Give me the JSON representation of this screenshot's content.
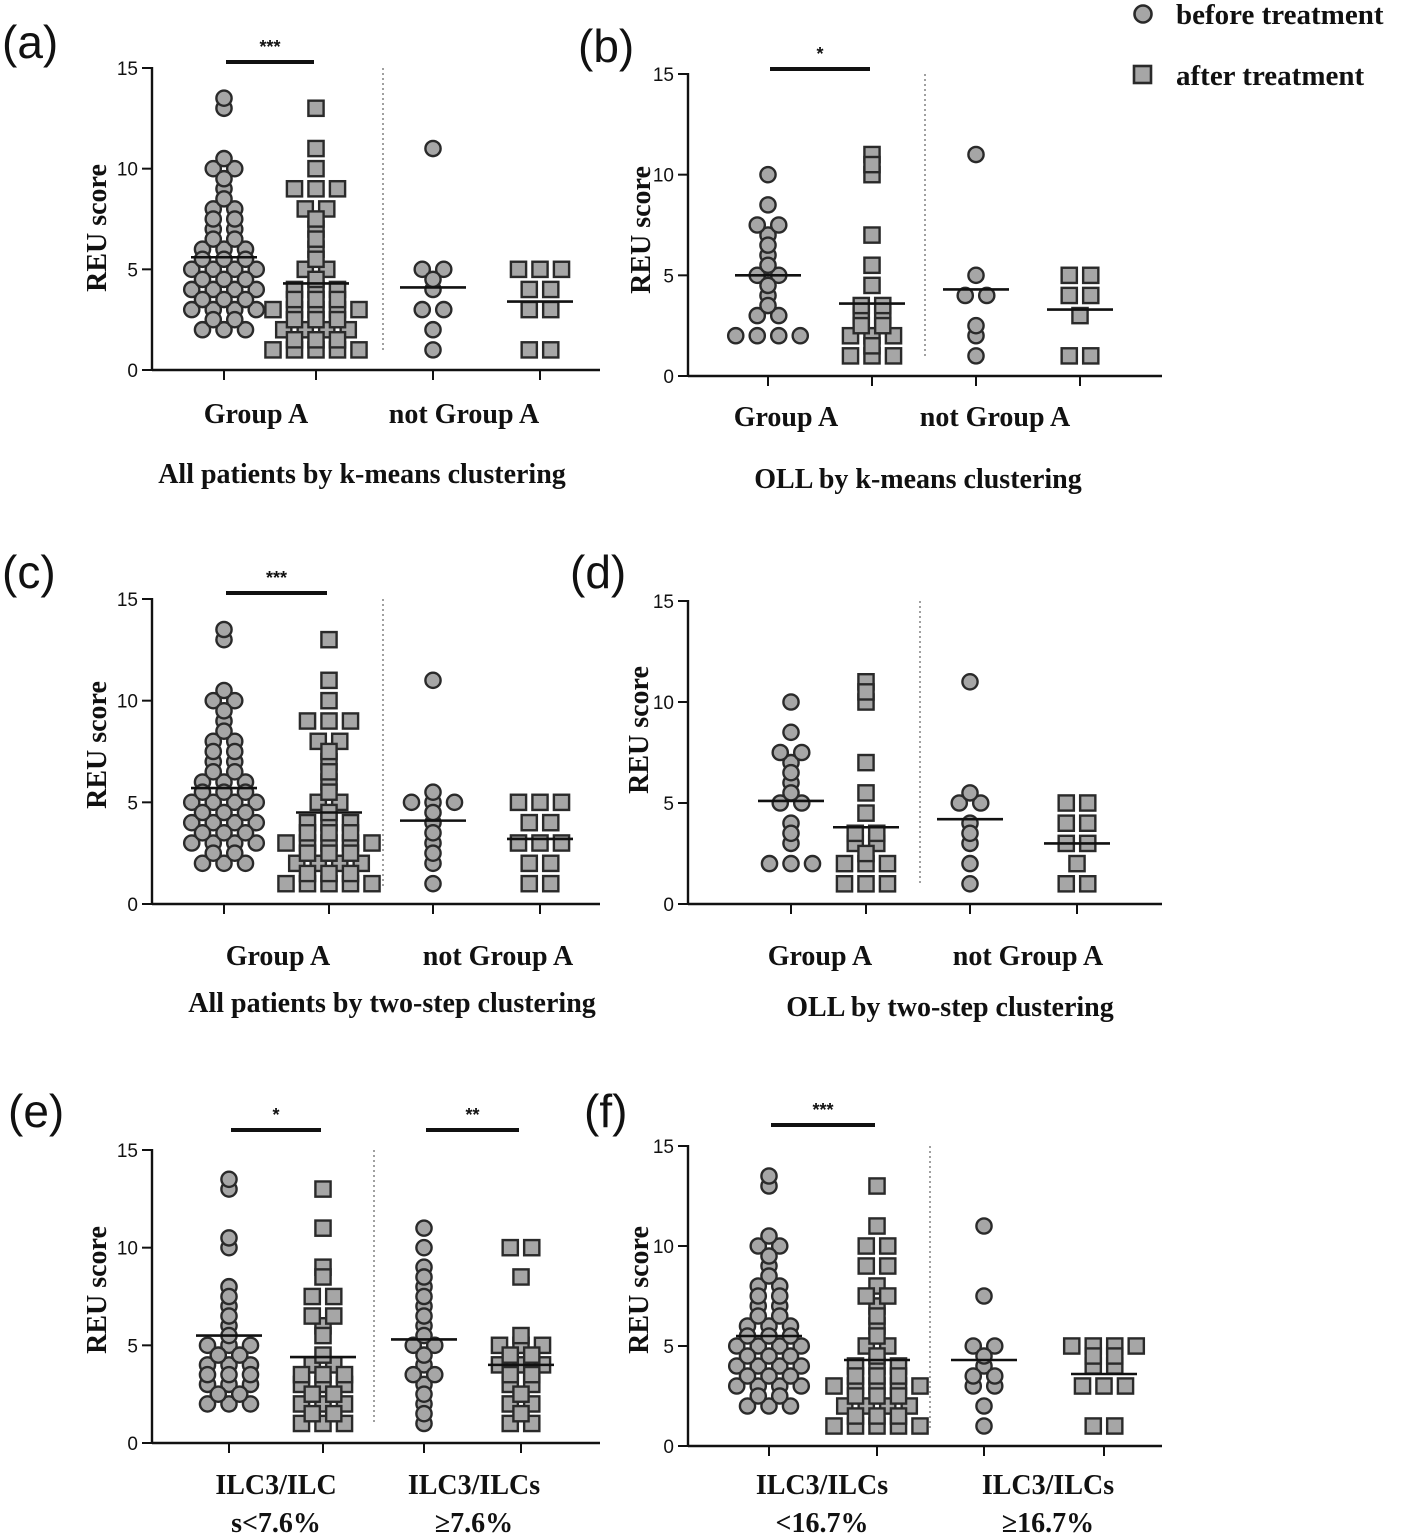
{
  "legend": {
    "before_label": "before treatment",
    "after_label": "after treatment",
    "marker_fill": "#a6a6a6",
    "marker_stroke": "#2a2a2a"
  },
  "chart_data": [
    {
      "type": "scatter",
      "panel_label": "(a)",
      "subtitle": "All patients by k-means clustering",
      "ylabel": "REU score",
      "ylim": [
        0,
        15
      ],
      "yticks": [
        0,
        5,
        10,
        15
      ],
      "group_labels": [
        [
          "Group A"
        ],
        [
          "not Group A"
        ]
      ],
      "series": [
        {
          "name": "before treatment",
          "group": 0,
          "mean": 5.6,
          "values": [
            13.5,
            13,
            10.5,
            10,
            10,
            9.5,
            9,
            8.5,
            8,
            8,
            7.5,
            7.5,
            7,
            7,
            6.5,
            6.5,
            6,
            6,
            6,
            5.5,
            5.5,
            5.5,
            5,
            5,
            5,
            5,
            4.5,
            4.5,
            4.5,
            4,
            4,
            4,
            4,
            3.5,
            3.5,
            3.5,
            3,
            3,
            3,
            3,
            2.5,
            2.5,
            2,
            2,
            2
          ]
        },
        {
          "name": "after treatment",
          "group": 0,
          "mean": 4.3,
          "values": [
            13,
            11,
            10,
            9,
            9,
            9,
            8,
            8,
            7.5,
            7,
            6.5,
            6,
            5.5,
            5,
            5,
            4.5,
            4,
            4,
            4,
            3.5,
            3.5,
            3.5,
            3,
            3,
            3,
            3,
            3,
            2.5,
            2.5,
            2.5,
            2,
            2,
            2,
            2,
            1.5,
            1.5,
            1.5,
            1,
            1,
            1,
            1,
            1
          ]
        },
        {
          "name": "before treatment",
          "group": 1,
          "mean": 4.1,
          "values": [
            11,
            5,
            5,
            4.5,
            4,
            3,
            3,
            2,
            1
          ]
        },
        {
          "name": "after treatment",
          "group": 1,
          "mean": 3.4,
          "values": [
            5,
            5,
            5,
            4,
            4,
            3,
            3,
            1,
            1
          ]
        }
      ],
      "significance": [
        {
          "group": 0,
          "label": "***"
        }
      ]
    },
    {
      "type": "scatter",
      "panel_label": "(b)",
      "subtitle": "OLL by k-means clustering",
      "ylabel": "REU score",
      "ylim": [
        0,
        15
      ],
      "yticks": [
        0,
        5,
        10,
        15
      ],
      "group_labels": [
        [
          "Group A"
        ],
        [
          "not Group A"
        ]
      ],
      "series": [
        {
          "name": "before treatment",
          "group": 0,
          "mean": 5.0,
          "values": [
            10,
            8.5,
            7.5,
            7.5,
            7,
            6.5,
            6,
            5.5,
            5,
            5,
            4.5,
            4,
            3.5,
            3,
            3,
            2,
            2,
            2,
            2
          ]
        },
        {
          "name": "after treatment",
          "group": 0,
          "mean": 3.6,
          "values": [
            11,
            10.5,
            10,
            7,
            5.5,
            4.5,
            3.5,
            3.5,
            3,
            3,
            2.5,
            2.5,
            2,
            2,
            2,
            1.5,
            1,
            1,
            1
          ]
        },
        {
          "name": "before treatment",
          "group": 1,
          "mean": 4.3,
          "values": [
            11,
            5,
            4,
            4,
            2.5,
            2,
            1
          ]
        },
        {
          "name": "after treatment",
          "group": 1,
          "mean": 3.3,
          "values": [
            5,
            5,
            4,
            4,
            3,
            1,
            1
          ]
        }
      ],
      "significance": [
        {
          "group": 0,
          "label": "*"
        }
      ]
    },
    {
      "type": "scatter",
      "panel_label": "(c)",
      "subtitle": "All patients by two-step clustering",
      "ylabel": "REU score",
      "ylim": [
        0,
        15
      ],
      "yticks": [
        0,
        5,
        10,
        15
      ],
      "group_labels": [
        [
          "Group A"
        ],
        [
          "not Group A"
        ]
      ],
      "series": [
        {
          "name": "before treatment",
          "group": 0,
          "mean": 5.7,
          "values": [
            13.5,
            13,
            10.5,
            10,
            10,
            9.5,
            9,
            8.5,
            8,
            8,
            7.5,
            7.5,
            7,
            7,
            6.5,
            6.5,
            6,
            6,
            6,
            5.5,
            5.5,
            5.5,
            5,
            5,
            5,
            5,
            4.5,
            4.5,
            4.5,
            4,
            4,
            4,
            4,
            3.5,
            3.5,
            3.5,
            3,
            3,
            3,
            3,
            2.5,
            2.5,
            2,
            2,
            2
          ]
        },
        {
          "name": "after treatment",
          "group": 0,
          "mean": 4.5,
          "values": [
            13,
            11,
            10,
            9,
            9,
            9,
            8,
            8,
            7.5,
            7,
            6.5,
            6,
            5.5,
            5,
            5,
            4.5,
            4,
            4,
            4,
            3.5,
            3.5,
            3.5,
            3,
            3,
            3,
            3,
            3,
            2.5,
            2.5,
            2.5,
            2,
            2,
            2,
            2,
            1.5,
            1.5,
            1.5,
            1,
            1,
            1,
            1,
            1
          ]
        },
        {
          "name": "before treatment",
          "group": 1,
          "mean": 4.1,
          "values": [
            11,
            5.5,
            5,
            5,
            5,
            4.5,
            4,
            3.5,
            3,
            2.5,
            2,
            1
          ]
        },
        {
          "name": "after treatment",
          "group": 1,
          "mean": 3.2,
          "values": [
            5,
            5,
            5,
            4,
            4,
            3,
            3,
            3,
            2,
            2,
            1,
            1
          ]
        }
      ],
      "significance": [
        {
          "group": 0,
          "label": "***"
        }
      ]
    },
    {
      "type": "scatter",
      "panel_label": "(d)",
      "subtitle": "OLL by two-step clustering",
      "ylabel": "REU score",
      "ylim": [
        0,
        15
      ],
      "yticks": [
        0,
        5,
        10,
        15
      ],
      "group_labels": [
        [
          "Group A"
        ],
        [
          "not Group A"
        ]
      ],
      "series": [
        {
          "name": "before treatment",
          "group": 0,
          "mean": 5.1,
          "values": [
            10,
            8.5,
            7.5,
            7.5,
            7,
            6.5,
            6,
            5.5,
            5,
            5,
            4,
            3.5,
            3,
            2,
            2,
            2
          ]
        },
        {
          "name": "after treatment",
          "group": 0,
          "mean": 3.8,
          "values": [
            11,
            10.5,
            10,
            7,
            5.5,
            4.5,
            3.5,
            3.5,
            3,
            3,
            2.5,
            2,
            2,
            2,
            1,
            1,
            1
          ]
        },
        {
          "name": "before treatment",
          "group": 1,
          "mean": 4.2,
          "values": [
            11,
            5.5,
            5,
            5,
            4,
            3.5,
            3,
            2,
            1
          ]
        },
        {
          "name": "after treatment",
          "group": 1,
          "mean": 3.0,
          "values": [
            5,
            5,
            4,
            4,
            3,
            3,
            2,
            1,
            1
          ]
        }
      ],
      "significance": []
    },
    {
      "type": "scatter",
      "panel_label": "(e)",
      "subtitle": "",
      "ylabel": "REU score",
      "ylim": [
        0,
        15
      ],
      "yticks": [
        0,
        5,
        10,
        15
      ],
      "group_labels": [
        [
          "ILC3/ILC",
          "s<7.6%"
        ],
        [
          "ILC3/ILCs",
          "≥7.6%"
        ]
      ],
      "series": [
        {
          "name": "before treatment",
          "group": 0,
          "mean": 5.5,
          "values": [
            13.5,
            13,
            10.5,
            10,
            8,
            7.5,
            7,
            6.5,
            6,
            5.5,
            5,
            5,
            5,
            4.5,
            4.5,
            4,
            4,
            4,
            3.5,
            3.5,
            3.5,
            3,
            3,
            3,
            2.5,
            2.5,
            2,
            2,
            2
          ]
        },
        {
          "name": "after treatment",
          "group": 0,
          "mean": 4.4,
          "values": [
            13,
            11,
            9,
            8.5,
            7.5,
            7.5,
            6.5,
            6.5,
            6,
            5.5,
            4.5,
            4,
            4,
            3.5,
            3.5,
            3.5,
            3,
            3,
            3,
            2.5,
            2.5,
            2,
            2,
            2,
            1.5,
            1.5,
            1,
            1,
            1
          ]
        },
        {
          "name": "before treatment",
          "group": 1,
          "mean": 5.3,
          "values": [
            11,
            10,
            9,
            8.5,
            8,
            7.5,
            7,
            6.5,
            6,
            5.5,
            5,
            5,
            4.5,
            4,
            3.5,
            3.5,
            3,
            2.5,
            2,
            1.5,
            1
          ]
        },
        {
          "name": "after treatment",
          "group": 1,
          "mean": 4.0,
          "values": [
            10,
            10,
            8.5,
            5.5,
            5,
            5,
            5,
            4.5,
            4.5,
            4,
            4,
            4,
            3.5,
            3.5,
            3,
            3,
            2.5,
            2,
            2,
            1.5,
            1,
            1
          ]
        }
      ],
      "significance": [
        {
          "group": 0,
          "label": "*"
        },
        {
          "group": 1,
          "label": "**"
        }
      ]
    },
    {
      "type": "scatter",
      "panel_label": "(f)",
      "subtitle": "",
      "ylabel": "REU score",
      "ylim": [
        0,
        15
      ],
      "yticks": [
        0,
        5,
        10,
        15
      ],
      "group_labels": [
        [
          "ILC3/ILCs",
          "<16.7%"
        ],
        [
          "ILC3/ILCs",
          "≥16.7%"
        ]
      ],
      "series": [
        {
          "name": "before treatment",
          "group": 0,
          "mean": 5.5,
          "values": [
            13.5,
            13,
            10.5,
            10,
            10,
            9.5,
            9,
            8.5,
            8,
            8,
            7.5,
            7.5,
            7,
            7,
            6.5,
            6.5,
            6,
            6,
            6,
            5.5,
            5.5,
            5.5,
            5,
            5,
            5,
            5,
            4.5,
            4.5,
            4.5,
            4,
            4,
            4,
            4,
            3.5,
            3.5,
            3.5,
            3,
            3,
            3,
            3,
            2.5,
            2.5,
            2,
            2,
            2
          ]
        },
        {
          "name": "after treatment",
          "group": 0,
          "mean": 4.3,
          "values": [
            13,
            11,
            10,
            10,
            9,
            9,
            8,
            7.5,
            7.5,
            7,
            6.5,
            6,
            5.5,
            5,
            5,
            4.5,
            4,
            4,
            4,
            3.5,
            3.5,
            3.5,
            3,
            3,
            3,
            3,
            3,
            2.5,
            2.5,
            2.5,
            2,
            2,
            2,
            2,
            1.5,
            1.5,
            1.5,
            1,
            1,
            1,
            1,
            1
          ]
        },
        {
          "name": "before treatment",
          "group": 1,
          "mean": 4.3,
          "values": [
            11,
            7.5,
            5,
            5,
            4.5,
            4,
            3.5,
            3.5,
            3,
            3,
            2,
            1
          ]
        },
        {
          "name": "after treatment",
          "group": 1,
          "mean": 3.6,
          "values": [
            5,
            5,
            5,
            5,
            4.5,
            4.5,
            4,
            4,
            3,
            3,
            3,
            1,
            1
          ]
        }
      ],
      "significance": [
        {
          "group": 0,
          "label": "***"
        }
      ]
    }
  ]
}
